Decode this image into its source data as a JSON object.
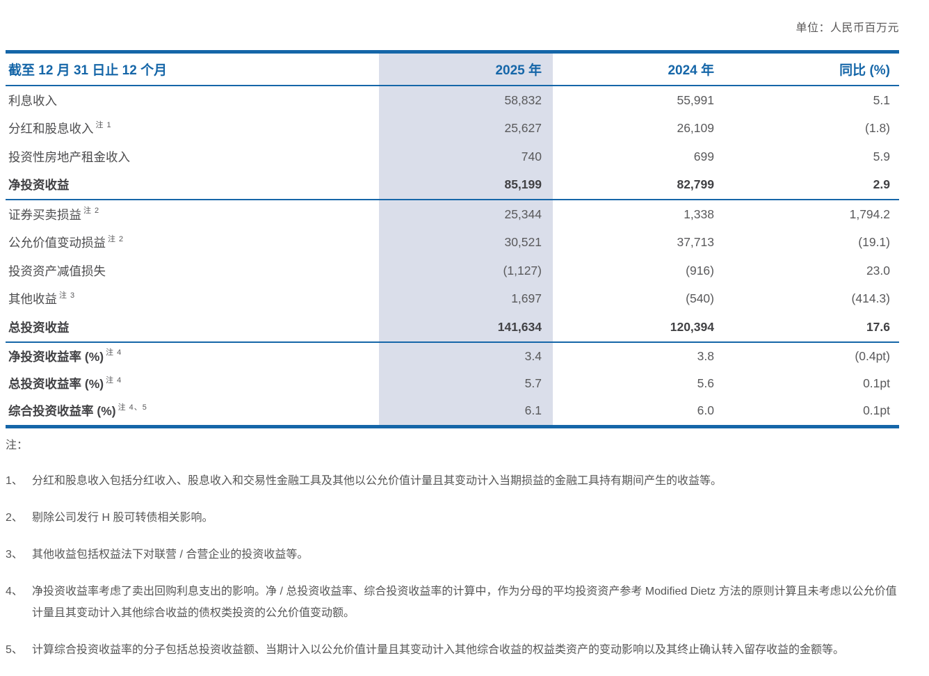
{
  "unit_note": "单位：人民币百万元",
  "colors": {
    "accent_blue": "#1566A8",
    "highlight_column_bg": "#DADEEA",
    "label_text": "#4C4C4E",
    "number_text": "#59595B",
    "note_text": "#565756"
  },
  "table": {
    "header": {
      "period": "截至 12 月 31 日止 12 个月",
      "col_2025": "2025 年",
      "col_2024": "2024 年",
      "col_yoy": "同比 (%)"
    },
    "groups": [
      {
        "rows": [
          {
            "label": "利息收入",
            "sup": "",
            "v2025": "58,832",
            "v2024": "55,991",
            "yoy": "5.1",
            "style": "normal"
          },
          {
            "label": "分红和股息收入",
            "sup": "注 1",
            "v2025": "25,627",
            "v2024": "26,109",
            "yoy": "(1.8)",
            "style": "normal"
          },
          {
            "label": "投资性房地产租金收入",
            "sup": "",
            "v2025": "740",
            "v2024": "699",
            "yoy": "5.9",
            "style": "normal"
          },
          {
            "label": "净投资收益",
            "sup": "",
            "v2025": "85,199",
            "v2024": "82,799",
            "yoy": "2.9",
            "style": "bold"
          }
        ]
      },
      {
        "rows": [
          {
            "label": "证券买卖损益",
            "sup": "注 2",
            "v2025": "25,344",
            "v2024": "1,338",
            "yoy": "1,794.2",
            "style": "normal"
          },
          {
            "label": "公允价值变动损益",
            "sup": "注 2",
            "v2025": "30,521",
            "v2024": "37,713",
            "yoy": "(19.1)",
            "style": "normal"
          },
          {
            "label": "投资资产减值损失",
            "sup": "",
            "v2025": "(1,127)",
            "v2024": "(916)",
            "yoy": "23.0",
            "style": "normal"
          },
          {
            "label": "其他收益",
            "sup": "注 3",
            "v2025": "1,697",
            "v2024": "(540)",
            "yoy": "(414.3)",
            "style": "normal"
          },
          {
            "label": "总投资收益",
            "sup": "",
            "v2025": "141,634",
            "v2024": "120,394",
            "yoy": "17.6",
            "style": "bold"
          }
        ]
      },
      {
        "rows": [
          {
            "label": "净投资收益率 (%)",
            "sup": "注 4",
            "v2025": "3.4",
            "v2024": "3.8",
            "yoy": "(0.4pt)",
            "style": "bold-label"
          },
          {
            "label": "总投资收益率 (%)",
            "sup": "注 4",
            "v2025": "5.7",
            "v2024": "5.6",
            "yoy": "0.1pt",
            "style": "bold-label"
          },
          {
            "label": "综合投资收益率 (%)",
            "sup": "注 4、5",
            "v2025": "6.1",
            "v2024": "6.0",
            "yoy": "0.1pt",
            "style": "bold-label"
          }
        ]
      }
    ]
  },
  "notes": {
    "title": "注：",
    "items": [
      {
        "no": "1、",
        "text": "分红和股息收入包括分红收入、股息收入和交易性金融工具及其他以公允价值计量且其变动计入当期损益的金融工具持有期间产生的收益等。"
      },
      {
        "no": "2、",
        "text": "剔除公司发行 H 股可转债相关影响。"
      },
      {
        "no": "3、",
        "text": "其他收益包括权益法下对联营 / 合营企业的投资收益等。"
      },
      {
        "no": "4、",
        "text": "净投资收益率考虑了卖出回购利息支出的影响。净 / 总投资收益率、综合投资收益率的计算中，作为分母的平均投资资产参考 Modified  Dietz 方法的原则计算且未考虑以公允价值计量且其变动计入其他综合收益的债权类投资的公允价值变动额。"
      },
      {
        "no": "5、",
        "text": "计算综合投资收益率的分子包括总投资收益额、当期计入以公允价值计量且其变动计入其他综合收益的权益类资产的变动影响以及其终止确认转入留存收益的金额等。"
      }
    ]
  }
}
